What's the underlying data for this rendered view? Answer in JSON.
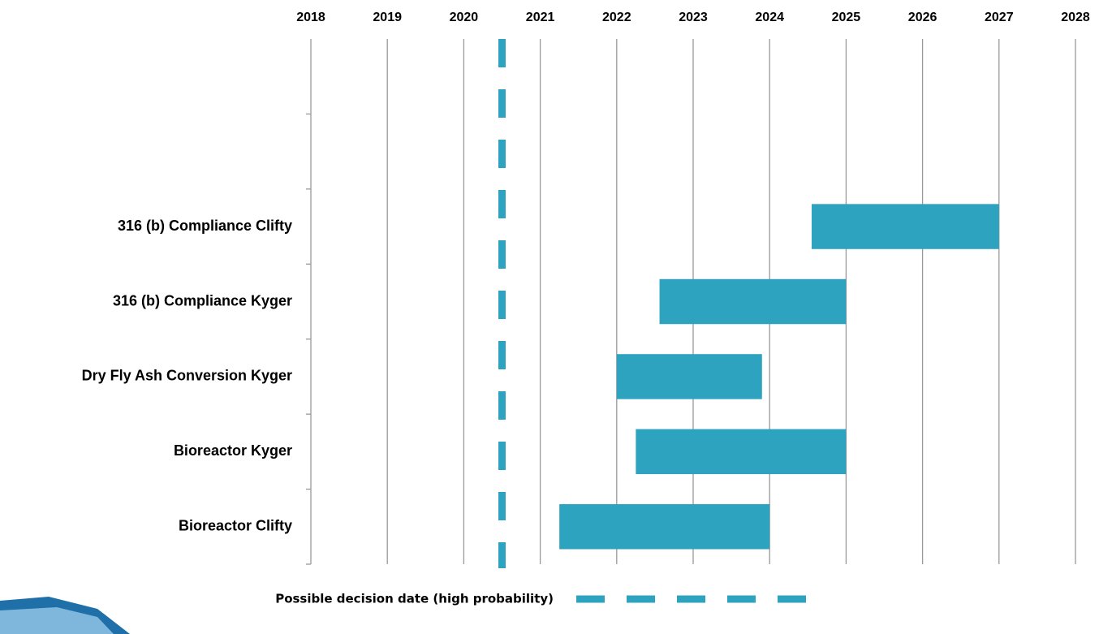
{
  "chart_data": {
    "type": "gantt",
    "categories": [
      null,
      null,
      "316 (b) Compliance Clifty",
      "316 (b) Compliance Kyger",
      "Dry Fly Ash Conversion Kyger",
      "Bioreactor Kyger",
      "Bioreactor Clifty"
    ],
    "starts": [
      null,
      null,
      2024.55,
      2022.56,
      2022.0,
      2022.25,
      2021.25
    ],
    "ends": [
      null,
      null,
      2027.0,
      2025.0,
      2023.9,
      2025.0,
      2024.0
    ],
    "color": "#2ea3bf",
    "xlim": [
      2018,
      2028
    ],
    "xticks": [
      2018,
      2019,
      2020,
      2021,
      2022,
      2023,
      2024,
      2025,
      2026,
      2027,
      2028
    ],
    "grid": true,
    "markers": [
      {
        "name": "Possible decision date (high probability)",
        "value": 2020.5,
        "color": "#2ea3bf"
      }
    ]
  }
}
